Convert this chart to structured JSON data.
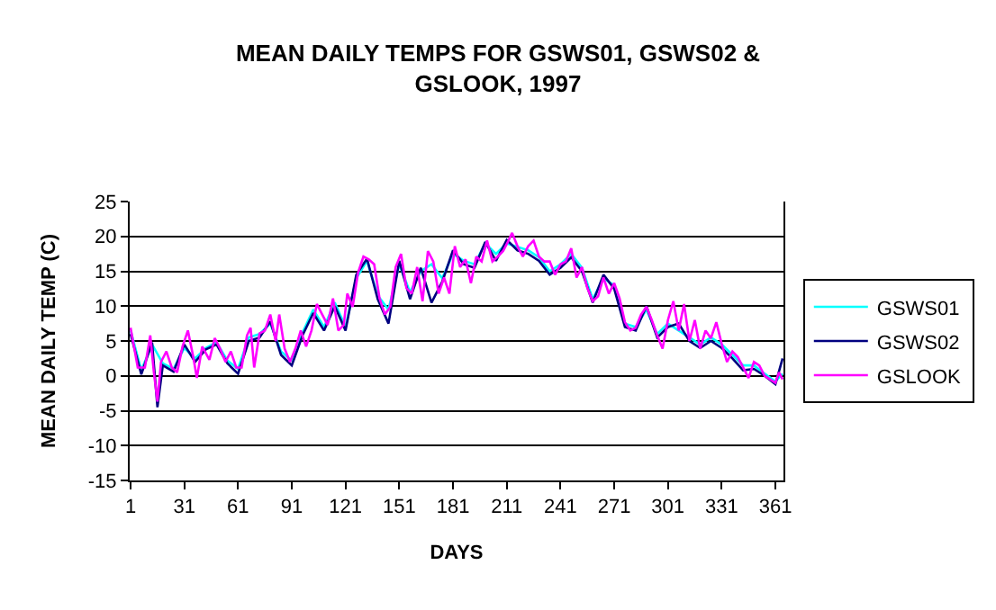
{
  "chart_data": {
    "type": "line",
    "title": "MEAN DAILY TEMPS FOR GSWS01, GSWS02 &\nGSLOOK, 1997",
    "xlabel": "DAYS",
    "ylabel": "MEAN DAILY TEMP (C)",
    "xlim": [
      0.5,
      365.5
    ],
    "xticks": [
      1,
      31,
      61,
      91,
      121,
      151,
      181,
      211,
      241,
      271,
      301,
      331,
      361
    ],
    "ylim": [
      -15,
      25
    ],
    "yticks": [
      -15,
      -10,
      -5,
      0,
      5,
      10,
      15,
      20,
      25
    ],
    "grid": "y",
    "legend": "right",
    "marker": "none",
    "line_style": "solid",
    "series": [
      {
        "name": "GSWS01",
        "color": "#00ffff",
        "x": [
          1,
          7,
          13,
          19,
          25,
          31,
          37,
          43,
          49,
          55,
          61,
          67,
          73,
          79,
          85,
          91,
          97,
          103,
          109,
          115,
          121,
          127,
          133,
          139,
          145,
          151,
          157,
          163,
          169,
          175,
          181,
          187,
          193,
          199,
          205,
          211,
          217,
          223,
          229,
          235,
          241,
          247,
          253,
          259,
          265,
          271,
          277,
          283,
          289,
          295,
          301,
          307,
          313,
          319,
          325,
          331,
          337,
          343,
          349,
          355,
          361,
          365
        ],
        "values": [
          6.5,
          0.8,
          4.5,
          1.8,
          1.0,
          4.0,
          2.5,
          4.0,
          4.8,
          2.2,
          1.0,
          5.5,
          6.0,
          7.5,
          3.5,
          2.2,
          6.2,
          9.5,
          7.0,
          10.5,
          7.0,
          14.0,
          16.5,
          11.5,
          9.5,
          16.0,
          12.0,
          15.0,
          16.0,
          14.0,
          17.5,
          16.5,
          16.0,
          19.0,
          17.5,
          19.0,
          18.5,
          18.0,
          17.0,
          15.0,
          16.0,
          17.5,
          15.5,
          11.0,
          14.0,
          13.0,
          7.5,
          7.0,
          9.5,
          6.0,
          7.5,
          6.5,
          5.5,
          4.5,
          5.5,
          4.5,
          3.0,
          1.5,
          1.5,
          0.3,
          -0.8,
          0.3
        ]
      },
      {
        "name": "GSWS02",
        "color": "#000080",
        "x": [
          1,
          7,
          13,
          16,
          19,
          25,
          31,
          37,
          43,
          49,
          55,
          61,
          67,
          73,
          79,
          85,
          91,
          97,
          103,
          109,
          115,
          121,
          127,
          133,
          139,
          145,
          151,
          157,
          163,
          169,
          175,
          181,
          187,
          193,
          199,
          205,
          211,
          217,
          223,
          229,
          235,
          241,
          247,
          253,
          259,
          265,
          271,
          277,
          283,
          289,
          295,
          301,
          307,
          313,
          319,
          325,
          331,
          337,
          343,
          349,
          355,
          361,
          365
        ],
        "values": [
          6.0,
          0.2,
          4.8,
          -4.5,
          1.5,
          0.6,
          4.5,
          2.0,
          3.8,
          4.5,
          1.8,
          0.3,
          5.0,
          5.5,
          7.8,
          3.0,
          1.5,
          5.8,
          9.0,
          6.5,
          10.0,
          6.5,
          14.5,
          16.8,
          11.0,
          7.5,
          16.5,
          11.0,
          15.5,
          10.5,
          13.5,
          18.0,
          16.0,
          15.5,
          19.2,
          16.5,
          19.5,
          18.0,
          17.5,
          16.5,
          14.5,
          15.5,
          17.0,
          15.0,
          10.5,
          14.5,
          12.5,
          7.0,
          6.5,
          10.0,
          5.5,
          7.0,
          7.5,
          5.0,
          4.0,
          5.0,
          4.0,
          2.5,
          0.8,
          1.0,
          0.0,
          -1.2,
          2.5
        ]
      },
      {
        "name": "GSLOOK",
        "color": "#ff00ff",
        "x": [
          1,
          5,
          9,
          12,
          14,
          16,
          18,
          21,
          24,
          27,
          30,
          33,
          36,
          38,
          41,
          45,
          48,
          51,
          54,
          57,
          60,
          63,
          66,
          68,
          70,
          73,
          76,
          79,
          82,
          84,
          87,
          90,
          93,
          96,
          99,
          102,
          105,
          108,
          111,
          114,
          117,
          120,
          122,
          125,
          128,
          131,
          134,
          137,
          140,
          143,
          146,
          149,
          152,
          155,
          158,
          161,
          164,
          167,
          170,
          173,
          176,
          179,
          182,
          185,
          188,
          191,
          194,
          197,
          200,
          203,
          206,
          209,
          212,
          214,
          217,
          220,
          223,
          226,
          229,
          232,
          235,
          238,
          241,
          244,
          247,
          250,
          253,
          256,
          259,
          262,
          265,
          268,
          271,
          274,
          277,
          280,
          283,
          286,
          289,
          292,
          295,
          298,
          301,
          304,
          307,
          310,
          313,
          316,
          319,
          322,
          325,
          328,
          331,
          334,
          337,
          340,
          343,
          346,
          349,
          352,
          355,
          358,
          361,
          363,
          365
        ],
        "values": [
          6.9,
          1.2,
          1.2,
          5.8,
          0.5,
          -3.7,
          2.0,
          3.5,
          1.2,
          0.5,
          4.2,
          6.5,
          2.7,
          -0.3,
          4.2,
          2.3,
          5.4,
          3.9,
          2.0,
          3.5,
          1.2,
          1.2,
          5.8,
          6.9,
          1.2,
          6.1,
          6.5,
          8.8,
          5.0,
          8.8,
          3.9,
          2.0,
          3.9,
          6.5,
          4.2,
          6.5,
          10.3,
          8.8,
          7.3,
          11.1,
          6.5,
          7.3,
          11.8,
          9.9,
          14.8,
          17.1,
          16.7,
          16.0,
          11.1,
          8.8,
          9.9,
          15.6,
          17.5,
          12.6,
          11.8,
          15.6,
          10.7,
          17.9,
          16.4,
          11.8,
          14.1,
          11.8,
          18.6,
          15.6,
          16.7,
          13.3,
          17.1,
          16.4,
          19.4,
          16.4,
          17.1,
          17.9,
          19.4,
          20.5,
          18.6,
          17.1,
          18.6,
          19.4,
          17.1,
          16.4,
          16.4,
          14.5,
          16.0,
          16.4,
          18.3,
          14.1,
          15.6,
          12.6,
          10.7,
          11.4,
          14.1,
          11.8,
          13.3,
          11.1,
          7.7,
          6.5,
          6.9,
          8.8,
          9.9,
          8.0,
          5.8,
          3.9,
          8.0,
          10.7,
          6.5,
          10.3,
          5.0,
          8.0,
          3.9,
          6.5,
          5.4,
          7.7,
          4.6,
          2.0,
          3.5,
          2.7,
          1.2,
          -0.3,
          2.0,
          1.5,
          0.0,
          -0.5,
          -1.0,
          0.5,
          -0.5
        ]
      }
    ]
  }
}
